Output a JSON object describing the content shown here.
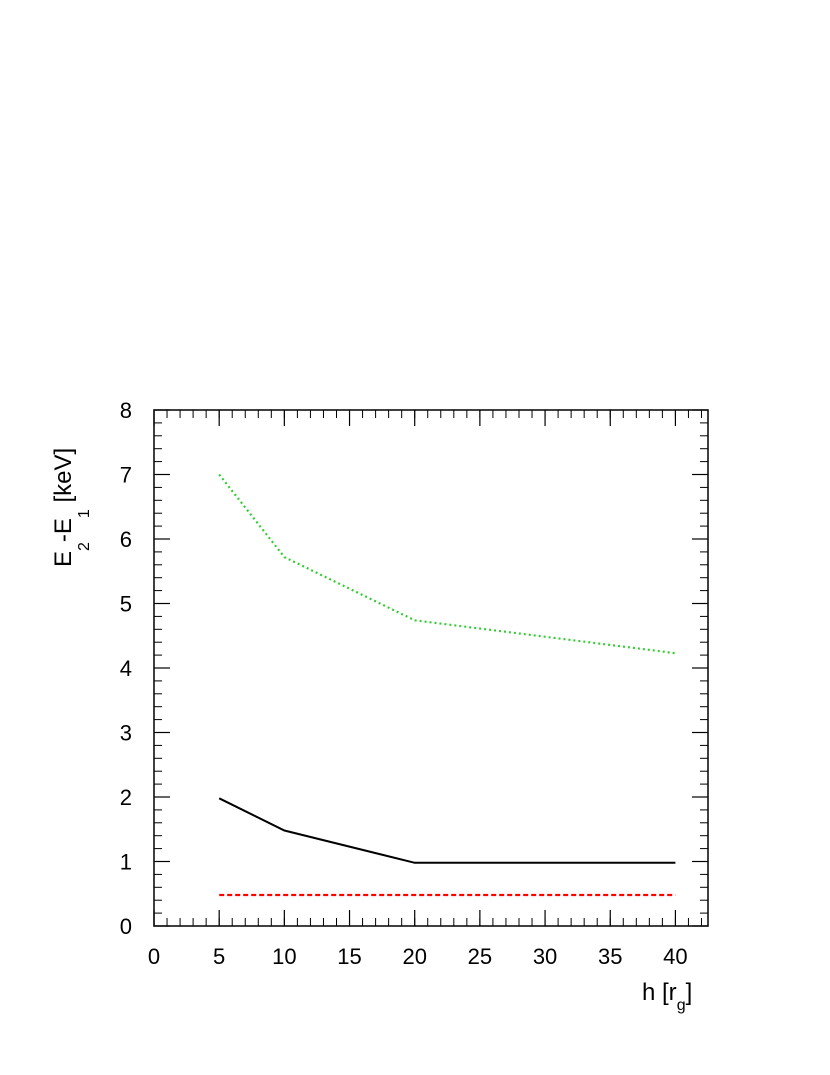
{
  "chart_data": {
    "type": "line",
    "xlabel": {
      "main": "h [r",
      "sub": "g",
      "end": "]"
    },
    "ylabel": {
      "p1": "E",
      "s1": "2",
      "p2": "-E",
      "s2": "1",
      "p3": " [keV]"
    },
    "xlim": [
      0,
      42.5
    ],
    "ylim": [
      0,
      8
    ],
    "xticks": [
      0,
      5,
      10,
      15,
      20,
      25,
      30,
      35,
      40
    ],
    "yticks": [
      0,
      1,
      2,
      3,
      4,
      5,
      6,
      7,
      8
    ],
    "x_minor_step": 1,
    "y_minor_step": 0.2,
    "grid": false,
    "series": [
      {
        "x": [
          5,
          10,
          20,
          40
        ],
        "values": [
          7.0,
          5.72,
          4.74,
          4.23
        ],
        "color": "#33cc33",
        "style": "dotted"
      },
      {
        "x": [
          5,
          10,
          20,
          40
        ],
        "values": [
          1.98,
          1.48,
          0.98,
          0.98
        ],
        "color": "#000000",
        "style": "solid"
      },
      {
        "x": [
          5,
          10,
          20,
          40
        ],
        "values": [
          0.48,
          0.48,
          0.48,
          0.48
        ],
        "color": "#ff0000",
        "style": "dashed"
      }
    ]
  }
}
